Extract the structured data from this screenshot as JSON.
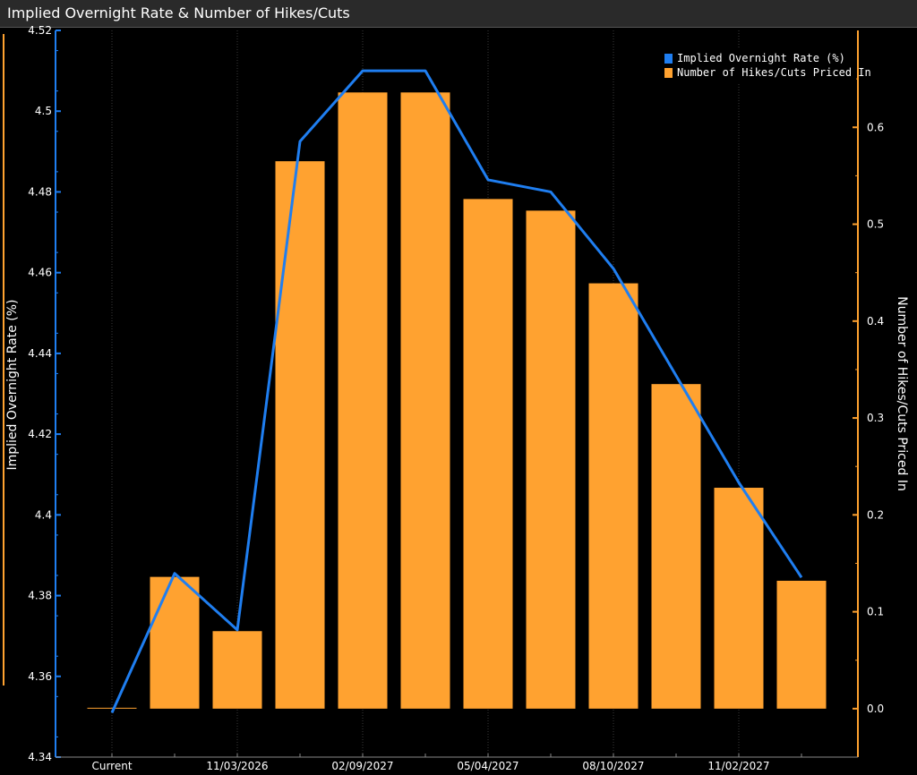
{
  "colors": {
    "background": "#000000",
    "line": "#1f7ef0",
    "bars": "#ffa230",
    "grid": "#3a3a3a",
    "text": "#ffffff",
    "title_bar": "#2a2a2a"
  },
  "chart_data": {
    "type": "bar",
    "title": "Implied Overnight Rate & Number of Hikes/Cuts",
    "x_tick_labels": [
      "Current",
      "11/03/2026",
      "02/09/2027",
      "05/04/2027",
      "08/10/2027",
      "11/02/2027"
    ],
    "categories": [
      "Current",
      "",
      "11/03/2026",
      "",
      "02/09/2027",
      "",
      "05/04/2027",
      "",
      "08/10/2027",
      "",
      "11/02/2027",
      ""
    ],
    "series": [
      {
        "name": "Implied Overnight Rate (%)",
        "type": "line",
        "axis": "left",
        "values": [
          4.351,
          4.3855,
          4.3715,
          4.4925,
          4.51,
          4.51,
          4.483,
          4.48,
          4.461,
          4.4345,
          4.408,
          4.3845
        ]
      },
      {
        "name": "Number of Hikes/Cuts Priced In",
        "type": "bar",
        "axis": "right",
        "values": [
          0.0,
          0.136,
          0.08,
          0.565,
          0.636,
          0.636,
          0.526,
          0.514,
          0.439,
          0.335,
          0.228,
          0.132
        ]
      }
    ],
    "y_left": {
      "label": "Implied Overnight Rate (%)",
      "ylim": [
        4.34,
        4.52
      ],
      "ticks": [
        4.34,
        4.36,
        4.38,
        4.4,
        4.42,
        4.44,
        4.46,
        4.48,
        4.5,
        4.52
      ],
      "tick_labels": [
        "4.34",
        "4.36",
        "4.38",
        "4.4",
        "4.42",
        "4.44",
        "4.46",
        "4.48",
        "4.5",
        "4.52"
      ]
    },
    "y_right": {
      "label": "Number of Hikes/Cuts Priced In",
      "ylim": [
        -0.05,
        0.7
      ],
      "ticks": [
        0.0,
        0.1,
        0.2,
        0.3,
        0.4,
        0.5,
        0.6
      ],
      "tick_labels": [
        "0.0",
        "0.1",
        "0.2",
        "0.3",
        "0.4",
        "0.5",
        "0.6"
      ]
    },
    "grid": "vertical",
    "legend_position": "top-right"
  }
}
